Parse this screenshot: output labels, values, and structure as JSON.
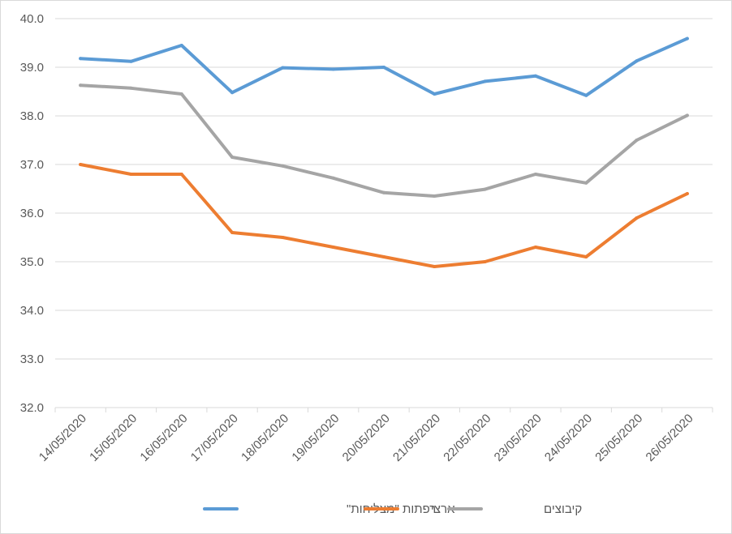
{
  "chart_data": {
    "type": "line",
    "title": "",
    "xlabel": "",
    "ylabel": "",
    "categories": [
      "14/05/2020",
      "15/05/2020",
      "16/05/2020",
      "17/05/2020",
      "18/05/2020",
      "19/05/2020",
      "20/05/2020",
      "21/05/2020",
      "22/05/2020",
      "23/05/2020",
      "24/05/2020",
      "25/05/2020",
      "26/05/2020"
    ],
    "ylim": [
      32.0,
      40.0
    ],
    "yticks": [
      "32.0",
      "33.0",
      "34.0",
      "35.0",
      "36.0",
      "37.0",
      "38.0",
      "39.0",
      "40.0"
    ],
    "grid": true,
    "legend_position": "bottom",
    "series": [
      {
        "name": "רפתות \"מצליחות\"",
        "color": "#5b9bd5",
        "values": [
          39.18,
          39.12,
          39.45,
          38.48,
          38.99,
          38.96,
          39.0,
          38.45,
          38.71,
          38.82,
          38.42,
          39.13,
          39.59
        ]
      },
      {
        "name": "ארצי",
        "color": "#ed7d31",
        "values": [
          37.0,
          36.8,
          36.8,
          35.6,
          35.5,
          35.3,
          35.1,
          34.9,
          35.0,
          35.3,
          35.1,
          35.9,
          36.4
        ]
      },
      {
        "name": "קיבוצים",
        "color": "#a5a5a5",
        "values": [
          38.63,
          38.57,
          38.45,
          37.15,
          36.97,
          36.72,
          36.42,
          36.35,
          36.49,
          36.8,
          36.62,
          37.5,
          38.01
        ]
      }
    ]
  }
}
